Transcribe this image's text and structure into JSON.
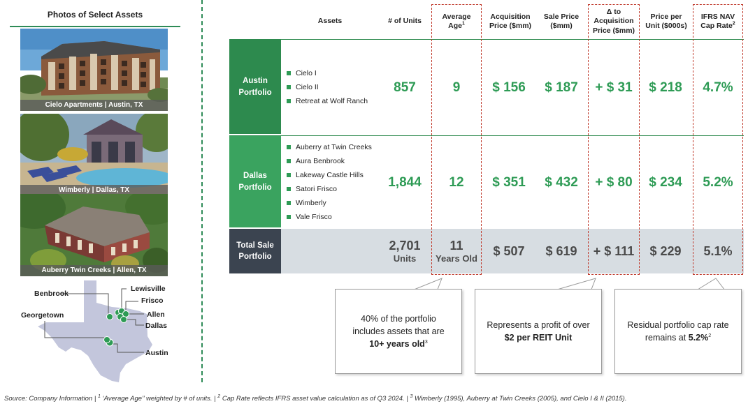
{
  "left": {
    "title": "Photos of Select Assets",
    "photos": [
      {
        "caption": "Cielo Apartments | Austin, TX"
      },
      {
        "caption": "Wimberly | Dallas, TX"
      },
      {
        "caption": "Auberry Twin Creeks | Allen, TX"
      }
    ],
    "map_cities": [
      "Benbrook",
      "Lewisville",
      "Frisco",
      "Georgetown",
      "Allen",
      "Dallas",
      "Austin"
    ]
  },
  "table": {
    "headers": {
      "assets": "Assets",
      "units": "# of Units",
      "age_line1": "Average",
      "age_line2": "Age",
      "age_sup": "1",
      "acq_line1": "Acquisition",
      "acq_line2": "Price ($mm)",
      "sale_line1": "Sale Price",
      "sale_line2": "($mm)",
      "delta_line1": "Δ to",
      "delta_line2": "Acquisition",
      "delta_line3": "Price ($mm)",
      "ppu_line1": "Price per",
      "ppu_line2": "Unit ($000s)",
      "cap_line1": "IFRS NAV",
      "cap_line2": "Cap Rate",
      "cap_sup": "2"
    },
    "austin": {
      "label_line1": "Austin",
      "label_line2": "Portfolio",
      "assets": [
        "Cielo I",
        "Cielo II",
        "Retreat at Wolf Ranch"
      ],
      "units": "857",
      "age": "9",
      "acq": "$ 156",
      "sale": "$ 187",
      "delta": "+ $ 31",
      "ppu": "$ 218",
      "cap": "4.7%"
    },
    "dallas": {
      "label_line1": "Dallas",
      "label_line2": "Portfolio",
      "assets": [
        "Auberry at Twin Creeks",
        "Aura Benbrook",
        "Lakeway Castle Hills",
        "Satori Frisco",
        "Wimberly",
        "Vale Frisco"
      ],
      "units": "1,844",
      "age": "12",
      "acq": "$ 351",
      "sale": "$ 432",
      "delta": "+ $ 80",
      "ppu": "$ 234",
      "cap": "5.2%"
    },
    "total": {
      "label_line1": "Total Sale",
      "label_line2": "Portfolio",
      "units": "2,701",
      "units_sub": "Units",
      "age": "11",
      "age_sub": "Years Old",
      "acq": "$ 507",
      "sale": "$ 619",
      "delta": "+ $ 111",
      "ppu": "$ 229",
      "cap": "5.1%"
    }
  },
  "callouts": {
    "c1_pre": "40% of the portfolio includes assets that are",
    "c1_bold": "10+ years old",
    "c1_sup": "3",
    "c2_pre": "Represents a profit of over",
    "c2_bold": "$2 per REIT Unit",
    "c3_pre": "Residual portfolio cap rate remains at",
    "c3_bold": "5.2%",
    "c3_sup": "2"
  },
  "footnote": {
    "p1": "Source: Company Information | ",
    "s1": "1",
    "p2": " ‘Average Age’’ weighted by # of units. | ",
    "s2": "2",
    "p3": " Cap Rate reflects IFRS asset value calculation as of Q3 2024. | ",
    "s3": "3",
    "p4": " Wimberly (1995), Auberry at Twin Creeks (2005), and Cielo I & II (2015)."
  },
  "colors": {
    "green_dark": "#2d8a4e",
    "green_light": "#3aa35f",
    "value_green": "#2e9b55",
    "total_label": "#3b4450",
    "total_row": "#d7dde2",
    "dash_red": "#c0392b"
  }
}
